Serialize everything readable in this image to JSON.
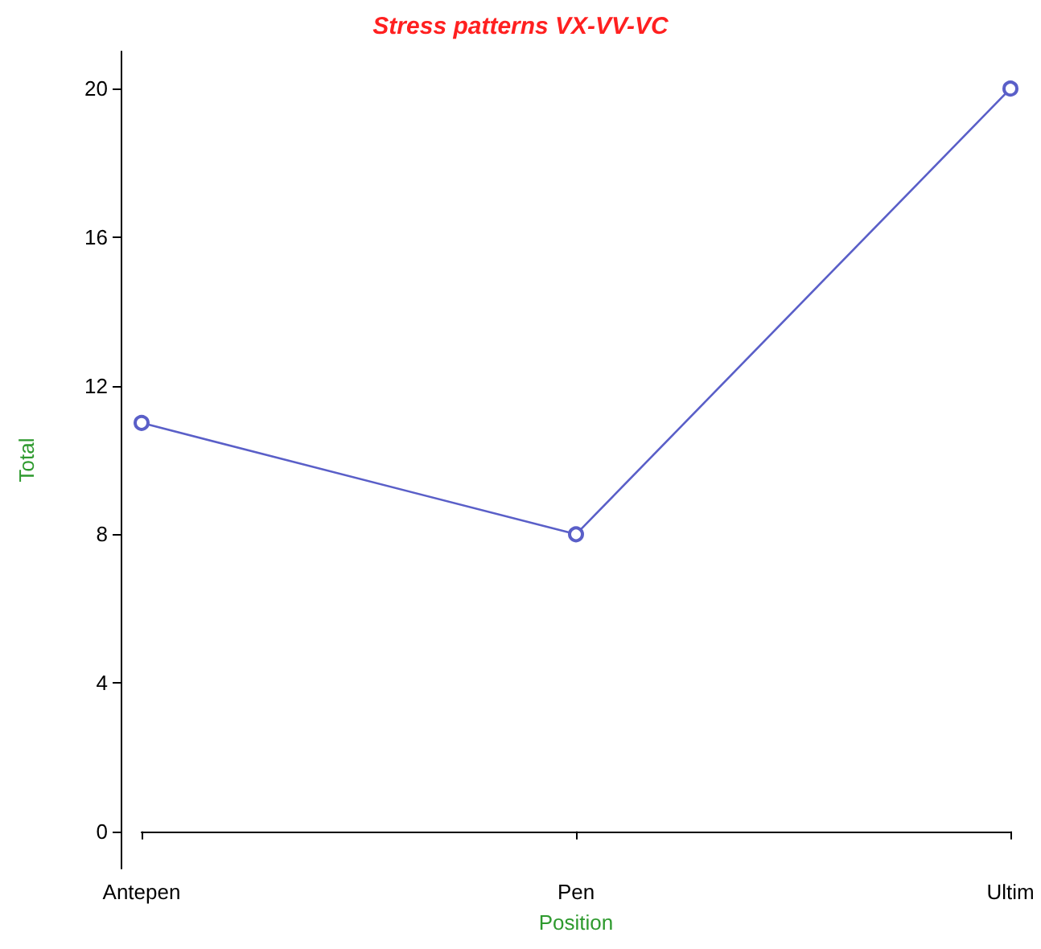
{
  "chart_data": {
    "type": "line",
    "title": "Stress patterns VX-VV-VC",
    "xlabel": "Position",
    "ylabel": "Total",
    "categories": [
      "Antepen",
      "Pen",
      "Ultim"
    ],
    "series": [
      {
        "color": "#5a5fc8",
        "values": [
          11,
          8,
          20
        ]
      }
    ],
    "ylim": [
      -1,
      21
    ],
    "yticks": [
      0,
      4,
      8,
      12,
      16,
      20
    ],
    "marker": "circle",
    "line_style": "solid"
  }
}
